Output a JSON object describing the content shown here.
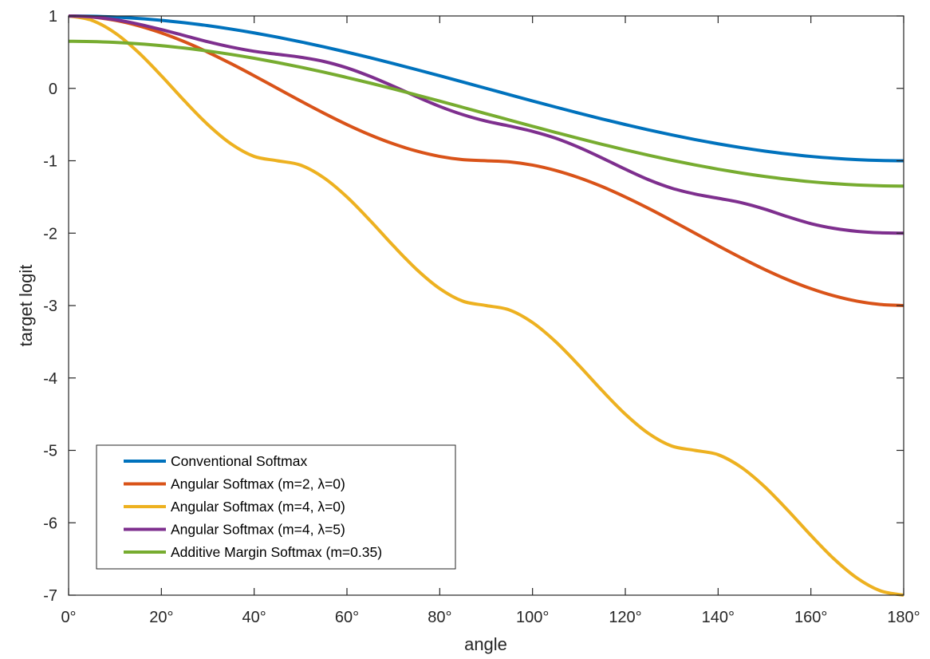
{
  "chart_data": {
    "type": "line",
    "title": "",
    "xlabel": "angle",
    "ylabel": "target logit",
    "xlim": [
      0,
      180
    ],
    "ylim": [
      -7,
      1
    ],
    "grid": false,
    "legend_position": "bottom-left",
    "x_ticks": [
      {
        "value": 0,
        "label": "0°"
      },
      {
        "value": 20,
        "label": "20°"
      },
      {
        "value": 40,
        "label": "40°"
      },
      {
        "value": 60,
        "label": "60°"
      },
      {
        "value": 80,
        "label": "80°"
      },
      {
        "value": 100,
        "label": "100°"
      },
      {
        "value": 120,
        "label": "120°"
      },
      {
        "value": 140,
        "label": "140°"
      },
      {
        "value": 160,
        "label": "160°"
      },
      {
        "value": 180,
        "label": "180°"
      }
    ],
    "y_ticks": [
      {
        "value": 1,
        "label": "1"
      },
      {
        "value": 0,
        "label": "0"
      },
      {
        "value": -1,
        "label": "-1"
      },
      {
        "value": -2,
        "label": "-2"
      },
      {
        "value": -3,
        "label": "-3"
      },
      {
        "value": -4,
        "label": "-4"
      },
      {
        "value": -5,
        "label": "-5"
      },
      {
        "value": -6,
        "label": "-6"
      },
      {
        "value": -7,
        "label": "-7"
      }
    ],
    "x": [
      0,
      5,
      10,
      15,
      20,
      25,
      30,
      35,
      40,
      45,
      50,
      55,
      60,
      65,
      70,
      75,
      80,
      85,
      90,
      95,
      100,
      105,
      110,
      115,
      120,
      125,
      130,
      135,
      140,
      145,
      150,
      155,
      160,
      165,
      170,
      175,
      180
    ],
    "series": [
      {
        "name": "Conventional Softmax",
        "color": "#0072BD",
        "values": [
          1.0,
          0.996,
          0.985,
          0.966,
          0.94,
          0.906,
          0.866,
          0.819,
          0.766,
          0.707,
          0.643,
          0.574,
          0.5,
          0.423,
          0.342,
          0.259,
          0.174,
          0.087,
          0.0,
          -0.087,
          -0.174,
          -0.259,
          -0.342,
          -0.423,
          -0.5,
          -0.574,
          -0.643,
          -0.707,
          -0.766,
          -0.819,
          -0.866,
          -0.906,
          -0.94,
          -0.966,
          -0.985,
          -0.996,
          -1.0
        ]
      },
      {
        "name": "Angular Softmax (m=2, λ=0)",
        "color": "#D95319",
        "values": [
          1.0,
          0.985,
          0.94,
          0.866,
          0.766,
          0.643,
          0.5,
          0.342,
          0.174,
          0.0,
          -0.174,
          -0.342,
          -0.5,
          -0.643,
          -0.766,
          -0.866,
          -0.94,
          -0.985,
          -1.0,
          -1.015,
          -1.06,
          -1.134,
          -1.234,
          -1.357,
          -1.5,
          -1.658,
          -1.826,
          -2.0,
          -2.174,
          -2.342,
          -2.5,
          -2.643,
          -2.766,
          -2.866,
          -2.94,
          -2.985,
          -3.0
        ]
      },
      {
        "name": "Angular Softmax (m=4, λ=0)",
        "color": "#EDB120",
        "values": [
          1.0,
          0.94,
          0.766,
          0.5,
          0.174,
          -0.174,
          -0.5,
          -0.766,
          -0.94,
          -1.0,
          -1.06,
          -1.234,
          -1.5,
          -1.826,
          -2.174,
          -2.5,
          -2.766,
          -2.94,
          -3.0,
          -3.06,
          -3.234,
          -3.5,
          -3.826,
          -4.174,
          -4.5,
          -4.766,
          -4.94,
          -5.0,
          -5.06,
          -5.234,
          -5.5,
          -5.826,
          -6.174,
          -6.5,
          -6.766,
          -6.94,
          -7.0
        ]
      },
      {
        "name": "Angular Softmax (m=4, λ=5)",
        "color": "#7E2F8E",
        "values": [
          1.0,
          0.987,
          0.949,
          0.888,
          0.812,
          0.728,
          0.644,
          0.571,
          0.512,
          0.471,
          0.43,
          0.372,
          0.283,
          0.165,
          0.029,
          -0.114,
          -0.25,
          -0.364,
          -0.453,
          -0.52,
          -0.594,
          -0.689,
          -0.815,
          -0.962,
          -1.117,
          -1.262,
          -1.379,
          -1.459,
          -1.518,
          -1.579,
          -1.667,
          -1.773,
          -1.868,
          -1.934,
          -1.975,
          -1.995,
          -2.0
        ]
      },
      {
        "name": "Additive Margin Softmax (m=0.35)",
        "color": "#77AC30",
        "values": [
          0.65,
          0.646,
          0.635,
          0.616,
          0.59,
          0.556,
          0.516,
          0.469,
          0.416,
          0.357,
          0.293,
          0.224,
          0.15,
          0.073,
          -0.008,
          -0.091,
          -0.176,
          -0.263,
          -0.35,
          -0.437,
          -0.524,
          -0.609,
          -0.692,
          -0.773,
          -0.85,
          -0.924,
          -0.993,
          -1.057,
          -1.116,
          -1.169,
          -1.216,
          -1.256,
          -1.29,
          -1.316,
          -1.335,
          -1.346,
          -1.35
        ]
      }
    ]
  }
}
